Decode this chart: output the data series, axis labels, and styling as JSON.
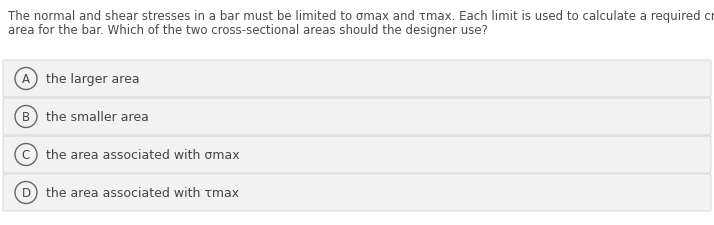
{
  "question_line1": "The normal and shear stresses in a bar must be limited to σmax and τmax. Each limit is used to calculate a required cross-sectional",
  "question_line2": "area for the bar. Which of the two cross-sectional areas should the designer use?",
  "options": [
    {
      "label": "A",
      "text": "the larger area"
    },
    {
      "label": "B",
      "text": "the smaller area"
    },
    {
      "label": "C",
      "text": "the area associated with σmax"
    },
    {
      "label": "D",
      "text": "the area associated with τmax"
    }
  ],
  "bg_color": "#ffffff",
  "option_bg_color": "#f2f2f2",
  "option_border_color": "#cccccc",
  "question_text_color": "#4a4a4a",
  "option_text_color": "#444444",
  "circle_edge_color": "#666666",
  "question_fontsize": 8.5,
  "option_fontsize": 9.0,
  "label_fontsize": 8.5,
  "fig_width": 7.14,
  "fig_height": 2.26,
  "dpi": 100
}
